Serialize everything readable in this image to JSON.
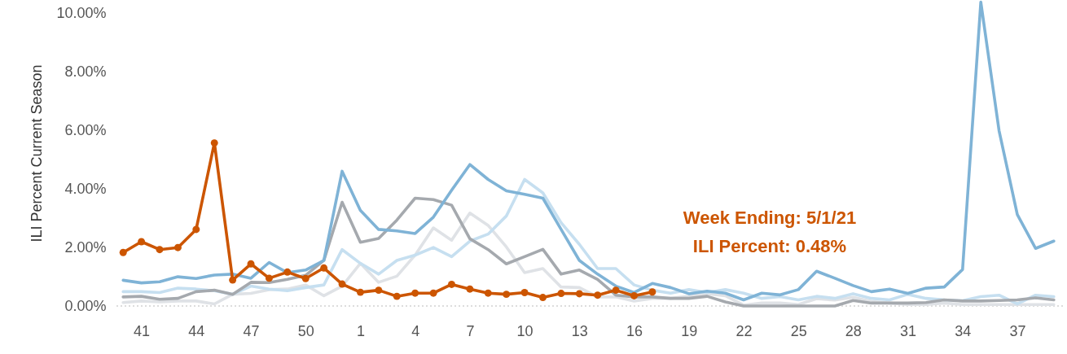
{
  "chart_data": {
    "type": "line",
    "ylabel": "ILI Percent Current Season",
    "categories": [
      null,
      "41",
      null,
      null,
      "44",
      null,
      null,
      "47",
      null,
      null,
      "50",
      null,
      null,
      "1",
      null,
      null,
      "4",
      null,
      null,
      "7",
      null,
      null,
      "10",
      null,
      null,
      "13",
      null,
      null,
      "16",
      null,
      null,
      "19",
      null,
      null,
      "22",
      null,
      null,
      "25",
      null,
      null,
      "28",
      null,
      null,
      "31",
      null,
      null,
      "34",
      null,
      null,
      "37",
      null,
      null
    ],
    "ylim": [
      0,
      10.47
    ],
    "yticks": [
      {
        "value": 0,
        "label": "0.00%"
      },
      {
        "value": 2,
        "label": "2.00%"
      },
      {
        "value": 4,
        "label": "4.00%"
      },
      {
        "value": 6,
        "label": "6.00%"
      },
      {
        "value": 8,
        "label": "8.00%"
      },
      {
        "value": 10,
        "label": "10.00%"
      }
    ],
    "grid": false,
    "ref_lines": [
      {
        "axis": "y",
        "value": 0,
        "color": "#bbbbbb",
        "line_style": "dotted"
      }
    ],
    "annotations": [
      "Week Ending: 5/1/21",
      "ILI Percent:  0.48%"
    ],
    "series": [
      {
        "color": "#dfe2e6",
        "values": [
          0.12,
          0.17,
          0.14,
          0.17,
          0.17,
          0.07,
          0.4,
          0.43,
          0.56,
          0.58,
          0.72,
          0.35,
          0.68,
          1.46,
          0.81,
          1.02,
          1.74,
          2.67,
          2.25,
          3.18,
          2.76,
          2.02,
          1.14,
          1.28,
          0.65,
          0.63,
          0.31,
          0.31,
          0.17,
          0.26,
          0.26,
          0.33,
          0.42,
          0.35,
          0.03,
          0.1,
          0.1,
          0.05,
          0.25,
          0.2,
          0.3,
          0.15,
          0.1,
          0.05,
          0.05,
          0.1,
          0.05,
          0.05,
          0.05,
          0.05,
          0.05,
          0.05
        ]
      },
      {
        "color": "#c6dff0",
        "values": [
          0.49,
          0.49,
          0.46,
          0.61,
          0.58,
          0.52,
          0.4,
          0.68,
          0.58,
          0.52,
          0.63,
          0.72,
          1.93,
          1.46,
          1.09,
          1.56,
          1.74,
          2.0,
          1.69,
          2.22,
          2.46,
          3.08,
          4.33,
          3.87,
          2.85,
          2.11,
          1.28,
          1.28,
          0.72,
          0.54,
          0.44,
          0.56,
          0.46,
          0.56,
          0.44,
          0.26,
          0.32,
          0.21,
          0.33,
          0.26,
          0.42,
          0.26,
          0.21,
          0.4,
          0.26,
          0.21,
          0.18,
          0.32,
          0.37,
          0.07,
          0.37,
          0.32
        ]
      },
      {
        "color": "#a5a9ae",
        "values": [
          0.31,
          0.33,
          0.23,
          0.26,
          0.49,
          0.54,
          0.4,
          0.81,
          0.8,
          0.91,
          1.05,
          1.56,
          3.55,
          2.18,
          2.31,
          2.94,
          3.69,
          3.64,
          3.45,
          2.3,
          1.93,
          1.44,
          1.69,
          1.94,
          1.09,
          1.23,
          0.91,
          0.37,
          0.31,
          0.31,
          0.26,
          0.26,
          0.33,
          0.14,
          0,
          0,
          0,
          0,
          0,
          0,
          0.19,
          0.1,
          0.1,
          0.1,
          0.12,
          0.21,
          0.17,
          0.17,
          0.19,
          0.21,
          0.28,
          0.21
        ]
      },
      {
        "color": "#7fb3d6",
        "values": [
          0.88,
          0.79,
          0.83,
          1.0,
          0.94,
          1.06,
          1.09,
          0.95,
          1.49,
          1.14,
          1.23,
          1.56,
          4.61,
          3.27,
          2.62,
          2.57,
          2.48,
          3.04,
          3.96,
          4.84,
          4.33,
          3.94,
          3.82,
          3.69,
          2.62,
          1.56,
          1.09,
          0.68,
          0.46,
          0.77,
          0.63,
          0.42,
          0.51,
          0.44,
          0.21,
          0.44,
          0.38,
          0.56,
          1.19,
          0.95,
          0.7,
          0.49,
          0.58,
          0.43,
          0.61,
          0.65,
          1.25,
          10.4,
          6.0,
          3.13,
          1.97,
          2.22
        ]
      },
      {
        "color": "#cc5500",
        "marker": "circle",
        "values": [
          1.83,
          2.2,
          1.93,
          2.0,
          2.62,
          5.58,
          0.89,
          1.44,
          0.95,
          1.16,
          0.94,
          1.3,
          0.75,
          0.47,
          0.54,
          0.33,
          0.44,
          0.44,
          0.74,
          0.58,
          0.44,
          0.4,
          0.46,
          0.29,
          0.43,
          0.42,
          0.37,
          0.54,
          0.35,
          0.48,
          null,
          null,
          null,
          null,
          null,
          null,
          null,
          null,
          null,
          null,
          null,
          null,
          null,
          null,
          null,
          null,
          null,
          null,
          null,
          null,
          null,
          null
        ]
      }
    ]
  }
}
